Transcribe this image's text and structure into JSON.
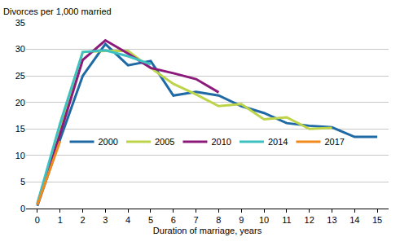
{
  "chart_data": {
    "type": "line",
    "y_label": "Divorces per 1,000 married",
    "x_label": "Duration of marriage, years",
    "x": [
      0,
      1,
      2,
      3,
      4,
      5,
      6,
      7,
      8,
      9,
      10,
      11,
      12,
      13,
      14,
      15
    ],
    "series": [
      {
        "name": "2000",
        "color": "#1f6aa5",
        "values": [
          0.5,
          13,
          25,
          31,
          27,
          27.8,
          21.3,
          22,
          21.3,
          19.3,
          18,
          16.1,
          15.6,
          15.3,
          13.5,
          13.5
        ]
      },
      {
        "name": "2005",
        "color": "#bdd44a",
        "values": [
          0.8,
          15,
          29.5,
          29.7,
          29.7,
          26.5,
          23.5,
          21.5,
          19.3,
          19.7,
          16.8,
          17.2,
          15,
          15.2,
          null,
          null
        ]
      },
      {
        "name": "2010",
        "color": "#8b1a7b",
        "values": [
          0.8,
          14,
          28,
          31.7,
          29.2,
          26.5,
          25.5,
          24.4,
          21.9,
          null,
          null,
          null,
          null,
          null,
          null,
          null
        ]
      },
      {
        "name": "2014",
        "color": "#3fc1c1",
        "values": [
          1,
          16,
          29.5,
          29.8,
          28.7,
          27.2,
          null,
          null,
          null,
          null,
          null,
          null,
          null,
          null,
          null,
          null
        ]
      },
      {
        "name": "2017",
        "color": "#f08a1c",
        "values": [
          0.7,
          12.7,
          null,
          null,
          null,
          null,
          null,
          null,
          null,
          null,
          null,
          null,
          null,
          null,
          null,
          null
        ]
      }
    ],
    "xlim": [
      -0.5,
      15.5
    ],
    "xticks": [
      0,
      1,
      2,
      3,
      4,
      5,
      6,
      7,
      8,
      9,
      10,
      11,
      12,
      13,
      14,
      15
    ],
    "ylim": [
      0,
      35
    ],
    "yticks": [
      0,
      5,
      10,
      15,
      20,
      25,
      30,
      35
    ],
    "grid": true,
    "legend": "center"
  }
}
